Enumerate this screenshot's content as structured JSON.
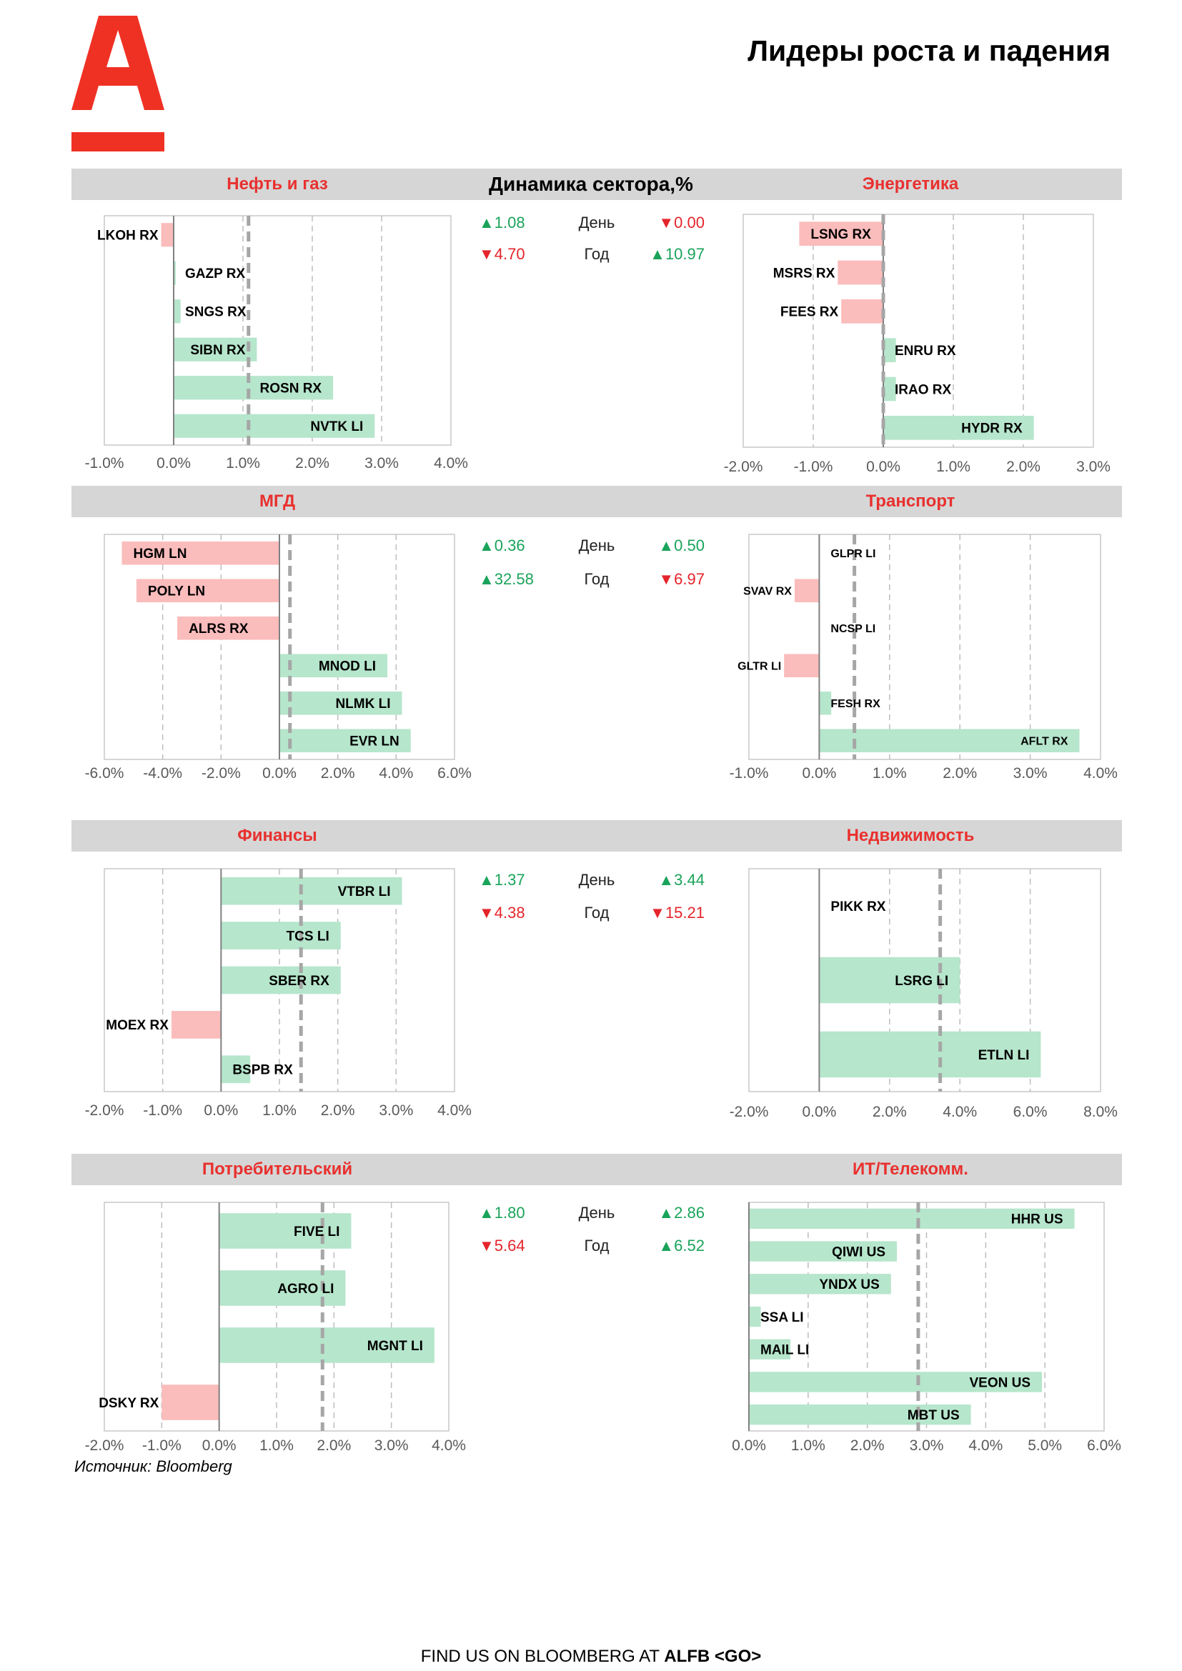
{
  "page_title": "Лидеры роста и падения",
  "logo": {
    "letter": "A",
    "color": "#ef3124"
  },
  "center_header": "Динамика сектора,%",
  "row_labels": {
    "day": "День",
    "year": "Год"
  },
  "colors": {
    "positive_bar": "#b6e6cc",
    "negative_bar": "#fbbcbc",
    "accent": "#e8312f",
    "up": "#1aa35a",
    "down": "#e5242b"
  },
  "stats": [
    {
      "left": {
        "day": {
          "dir": "up",
          "text": "1.08"
        },
        "year": {
          "dir": "down",
          "text": "4.70"
        }
      },
      "right": {
        "day": {
          "dir": "down",
          "text": "0.00"
        },
        "year": {
          "dir": "up",
          "text": "10.97"
        }
      }
    },
    {
      "left": {
        "day": {
          "dir": "up",
          "text": "0.36"
        },
        "year": {
          "dir": "up",
          "text": "32.58"
        }
      },
      "right": {
        "day": {
          "dir": "up",
          "text": "0.50"
        },
        "year": {
          "dir": "down",
          "text": "6.97"
        }
      }
    },
    {
      "left": {
        "day": {
          "dir": "up",
          "text": "1.37"
        },
        "year": {
          "dir": "down",
          "text": "4.38"
        }
      },
      "right": {
        "day": {
          "dir": "up",
          "text": "3.44"
        },
        "year": {
          "dir": "down",
          "text": "15.21"
        }
      }
    },
    {
      "left": {
        "day": {
          "dir": "up",
          "text": "1.80"
        },
        "year": {
          "dir": "down",
          "text": "5.64"
        }
      },
      "right": {
        "day": {
          "dir": "up",
          "text": "2.86"
        },
        "year": {
          "dir": "up",
          "text": "6.52"
        }
      }
    }
  ],
  "chart_data": [
    {
      "type": "bar",
      "title": "Нефть и газ",
      "xlim": [
        -1,
        4
      ],
      "ticks": [
        -1,
        0,
        1,
        2,
        3,
        4
      ],
      "tick_labels": [
        "-1.0%",
        "0.0%",
        "1.0%",
        "2.0%",
        "3.0%",
        "4.0%"
      ],
      "avg": 1.08,
      "categories": [
        "LKOH RX",
        "GAZP RX",
        "SNGS RX",
        "SIBN RX",
        "ROSN RX",
        "NVTK LI"
      ],
      "values": [
        -0.18,
        0.03,
        0.1,
        1.2,
        2.3,
        2.9
      ]
    },
    {
      "type": "bar",
      "title": "Энергетика",
      "xlim": [
        -2,
        3
      ],
      "ticks": [
        -2,
        -1,
        0,
        1,
        2,
        3
      ],
      "tick_labels": [
        "-2.0%",
        "-1.0%",
        "0.0%",
        "1.0%",
        "2.0%",
        "3.0%"
      ],
      "avg": 0.0,
      "categories": [
        "LSNG RX",
        "MSRS RX",
        "FEES RX",
        "ENRU RX",
        "IRAO RX",
        "HYDR RX"
      ],
      "values": [
        -1.2,
        -0.65,
        -0.6,
        0.18,
        0.18,
        2.15
      ]
    },
    {
      "type": "bar",
      "title": "МГД",
      "xlim": [
        -6,
        6
      ],
      "ticks": [
        -6,
        -4,
        -2,
        0,
        2,
        4,
        6
      ],
      "tick_labels": [
        "-6.0%",
        "-4.0%",
        "-2.0%",
        "0.0%",
        "2.0%",
        "4.0%",
        "6.0%"
      ],
      "avg": 0.36,
      "categories": [
        "HGM LN",
        "POLY LN",
        "ALRS RX",
        "MNOD LI",
        "NLMK LI",
        "EVR LN"
      ],
      "values": [
        -5.4,
        -4.9,
        -3.5,
        3.7,
        4.2,
        4.5
      ]
    },
    {
      "type": "bar",
      "title": "Транспорт",
      "xlim": [
        -1,
        4
      ],
      "ticks": [
        -1,
        0,
        1,
        2,
        3,
        4
      ],
      "tick_labels": [
        "-1.0%",
        "0.0%",
        "1.0%",
        "2.0%",
        "3.0%",
        "4.0%"
      ],
      "avg": 0.5,
      "categories": [
        "GLPR LI",
        "SVAV RX",
        "NCSP LI",
        "GLTR LI",
        "FESH RX",
        "AFLT RX"
      ],
      "values": [
        0.0,
        -0.35,
        0.0,
        -0.5,
        0.17,
        3.7
      ]
    },
    {
      "type": "bar",
      "title": "Финансы",
      "xlim": [
        -2,
        4
      ],
      "ticks": [
        -2,
        -1,
        0,
        1,
        2,
        3,
        4
      ],
      "tick_labels": [
        "-2.0%",
        "-1.0%",
        "0.0%",
        "1.0%",
        "2.0%",
        "3.0%",
        "4.0%"
      ],
      "avg": 1.37,
      "categories": [
        "VTBR LI",
        "TCS LI",
        "SBER RX",
        "MOEX RX",
        "BSPB RX"
      ],
      "values": [
        3.1,
        2.05,
        2.05,
        -0.85,
        0.5
      ]
    },
    {
      "type": "bar",
      "title": "Недвижимость",
      "xlim": [
        -2,
        8
      ],
      "ticks": [
        -2,
        0,
        2,
        4,
        6,
        8
      ],
      "tick_labels": [
        "-2.0%",
        "0.0%",
        "2.0%",
        "4.0%",
        "6.0%",
        "8.0%"
      ],
      "avg": 3.44,
      "categories": [
        "PIKK RX",
        "LSRG LI",
        "ETLN LI"
      ],
      "values": [
        0.0,
        4.0,
        6.3
      ]
    },
    {
      "type": "bar",
      "title": "Потребительский",
      "xlim": [
        -2,
        4
      ],
      "ticks": [
        -2,
        -1,
        0,
        1,
        2,
        3,
        4
      ],
      "tick_labels": [
        "-2.0%",
        "-1.0%",
        "0.0%",
        "1.0%",
        "2.0%",
        "3.0%",
        "4.0%"
      ],
      "avg": 1.8,
      "categories": [
        "FIVE LI",
        "AGRO LI",
        "MGNT LI",
        "DSKY RX"
      ],
      "values": [
        2.3,
        2.2,
        3.75,
        -1.0
      ]
    },
    {
      "type": "bar",
      "title": "ИТ/Телекомм.",
      "xlim": [
        0,
        6
      ],
      "ticks": [
        0,
        1,
        2,
        3,
        4,
        5,
        6
      ],
      "tick_labels": [
        "0.0%",
        "1.0%",
        "2.0%",
        "3.0%",
        "4.0%",
        "5.0%",
        "6.0%"
      ],
      "avg": 2.86,
      "categories": [
        "HHR US",
        "QIWI US",
        "YNDX US",
        "SSA LI",
        "MAIL LI",
        "VEON US",
        "MBT US"
      ],
      "values": [
        5.5,
        2.5,
        2.4,
        0.2,
        0.7,
        4.95,
        3.75
      ]
    }
  ],
  "source": "Источник: Bloomberg",
  "footer": {
    "prefix": "FIND US ON BLOOMBERG AT ",
    "bold": "ALFB <GO>"
  }
}
